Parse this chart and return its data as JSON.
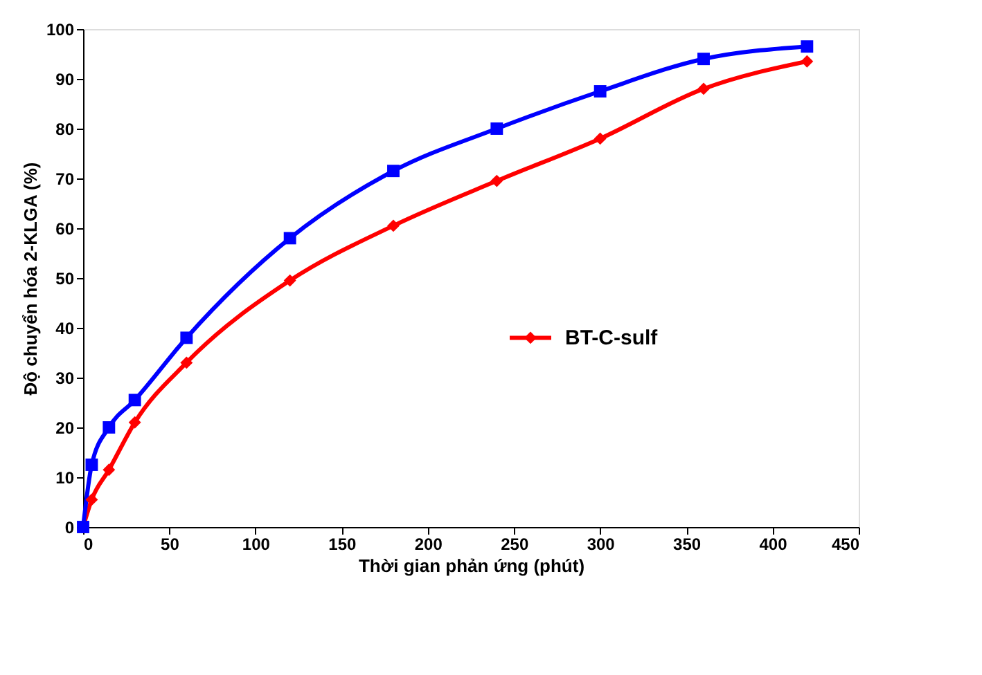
{
  "chart_data": {
    "type": "line",
    "xlabel": "Thời gian phản ứng (phút)",
    "ylabel": "Độ chuyển hóa 2-KLGA (%)",
    "x": [
      0,
      5,
      15,
      30,
      60,
      120,
      180,
      240,
      300,
      360,
      420
    ],
    "series": [
      {
        "name": "BT-C-sulf",
        "color": "#ff0000",
        "marker": "diamond",
        "values": [
          0,
          5.5,
          11.5,
          21,
          33,
          49.5,
          60.5,
          69.5,
          78,
          88,
          93.5
        ]
      },
      {
        "color": "#0000ff",
        "marker": "square",
        "values": [
          0,
          12.5,
          20,
          25.5,
          38,
          58,
          71.5,
          80,
          87.5,
          94,
          96.5
        ]
      }
    ],
    "xlim": [
      0,
      450
    ],
    "xticks": [
      0,
      50,
      100,
      150,
      200,
      250,
      300,
      350,
      400,
      450
    ],
    "ylim": [
      0,
      100
    ],
    "yticks": [
      0,
      10,
      20,
      30,
      40,
      50,
      60,
      70,
      80,
      90,
      100
    ],
    "grid": false,
    "legend": "right",
    "line_style": "solid"
  }
}
